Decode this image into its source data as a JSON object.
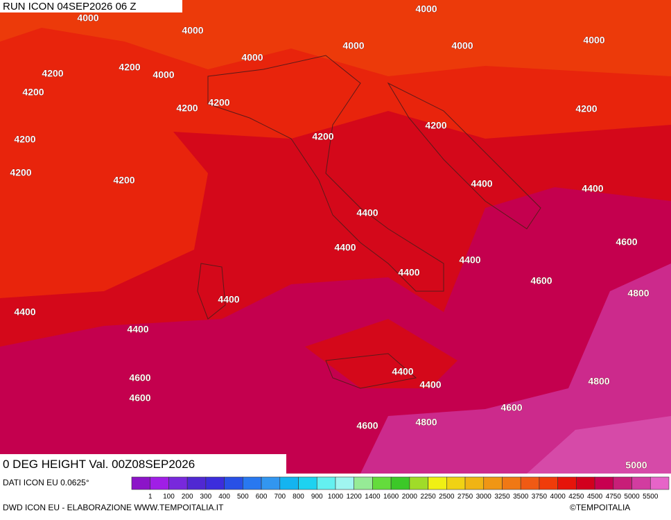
{
  "header": {
    "run": "RUN ICON 04SEP2026 06 Z",
    "field": "0 DEG HEIGHT Val. 00Z08SEP2026"
  },
  "footer": {
    "source": "DATI ICON EU 0.0625°",
    "credit": "DWD ICON EU - ELABORAZIONE WWW.TEMPOITALIA.IT",
    "copyright": "©TEMPOITALIA"
  },
  "legend": {
    "labels": [
      "1",
      "100",
      "200",
      "300",
      "400",
      "500",
      "600",
      "700",
      "800",
      "900",
      "1000",
      "1200",
      "1400",
      "1600",
      "2000",
      "2250",
      "2500",
      "2750",
      "3000",
      "3250",
      "3500",
      "3750",
      "4000",
      "4250",
      "4500",
      "4750",
      "5000",
      "5500"
    ],
    "colors": [
      "#5a0a6e",
      "#7a0f9a",
      "#8c14c8",
      "#a01ee6",
      "#7828dc",
      "#5028d2",
      "#3c2ddc",
      "#2850e6",
      "#2878f0",
      "#3296f0",
      "#14b4f0",
      "#1ed2f0",
      "#64f0f0",
      "#a0f5f0",
      "#96eb96",
      "#64dc3c",
      "#3cc828",
      "#a0dc28",
      "#f0f014",
      "#f0d214",
      "#f0b414",
      "#f09614",
      "#f07814",
      "#f05a14",
      "#f03c0a",
      "#e6140a",
      "#d2001e",
      "#c80050",
      "#c81e78",
      "#d23ca0",
      "#e664c8",
      "#f096e6"
    ]
  },
  "contours": [
    "4000",
    "4000",
    "4000",
    "4000",
    "4000",
    "4000",
    "4000",
    "4000",
    "4200",
    "4200",
    "4200",
    "4200",
    "4200",
    "4200",
    "4200",
    "4200",
    "4200",
    "4200",
    "4200",
    "4400",
    "4400",
    "4400",
    "4400",
    "4400",
    "4400",
    "4400",
    "4400",
    "4400",
    "4400",
    "4400",
    "4600",
    "4600",
    "4600",
    "4600",
    "4600",
    "4600",
    "4800",
    "4800",
    "4800",
    "5000"
  ]
}
